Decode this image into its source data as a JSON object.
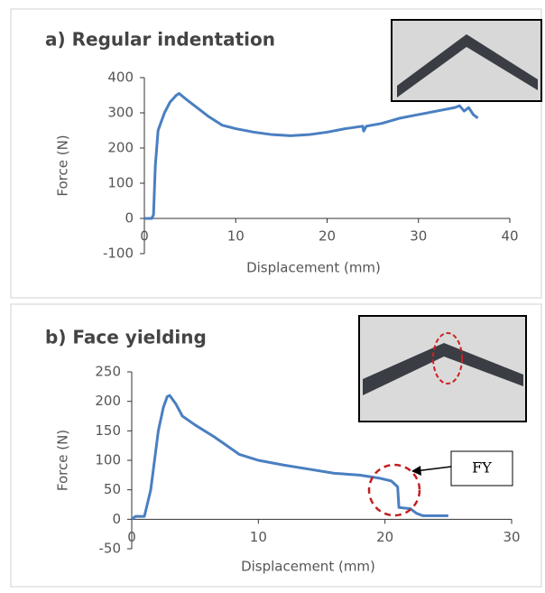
{
  "chart_data": [
    {
      "type": "line",
      "title": "a) Regular indentation",
      "x_label": "Displacement (mm)",
      "y_label": "Force (N)",
      "color": "#4a7fc1",
      "x": [
        0,
        0.8,
        1.0,
        1.2,
        1.5,
        2.2,
        2.8,
        3.5,
        3.8,
        4.5,
        6,
        7,
        8.5,
        10,
        12,
        14,
        16,
        18,
        20,
        22,
        23.9,
        24,
        24.3,
        26,
        28,
        30,
        32,
        34,
        34.5,
        35,
        35.5,
        36,
        36.5
      ],
      "values": [
        0,
        0,
        10,
        150,
        250,
        300,
        330,
        350,
        355,
        340,
        310,
        290,
        265,
        255,
        245,
        238,
        235,
        238,
        245,
        255,
        262,
        248,
        262,
        270,
        285,
        295,
        305,
        315,
        320,
        305,
        315,
        295,
        285
      ],
      "xlim": [
        0,
        40
      ],
      "xticks": [
        0,
        10,
        20,
        30,
        40
      ],
      "ylim": [
        -100,
        400
      ],
      "yticks": [
        -100,
        0,
        100,
        200,
        300,
        400
      ]
    },
    {
      "type": "line",
      "title": "b) Face yielding",
      "x_label": "Displacement (mm)",
      "y_label": "Force (N)",
      "color": "#4a7fc1",
      "annotation": "FY",
      "x": [
        0,
        0.3,
        1,
        1.5,
        1.8,
        2.1,
        2.5,
        2.8,
        3.0,
        3.5,
        4,
        5,
        6.5,
        7.5,
        8.5,
        10,
        12,
        14,
        16,
        18,
        19.5,
        20.5,
        21,
        21.1,
        22,
        22.5,
        23,
        25
      ],
      "values": [
        0,
        5,
        5,
        50,
        100,
        150,
        190,
        208,
        210,
        195,
        175,
        160,
        140,
        125,
        110,
        100,
        92,
        85,
        78,
        75,
        70,
        65,
        55,
        20,
        18,
        10,
        6,
        6
      ],
      "xlim": [
        0,
        30
      ],
      "xticks": [
        0,
        10,
        20,
        30
      ],
      "ylim": [
        -50,
        250
      ],
      "yticks": [
        -50,
        0,
        50,
        100,
        150,
        200,
        250
      ]
    }
  ]
}
